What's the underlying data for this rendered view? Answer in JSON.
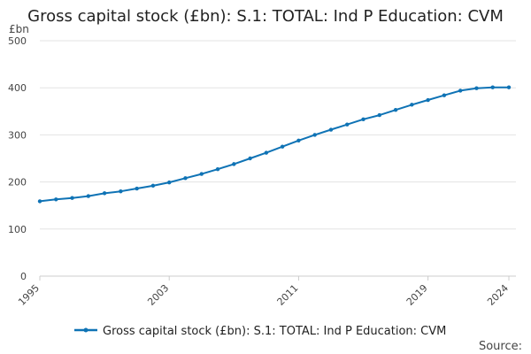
{
  "chart_data": {
    "type": "line",
    "title": "Gross capital stock (£bn): S.1: TOTAL: Ind P Education: CVM",
    "ylabel": "£bn",
    "xlabel": "",
    "x": [
      1995,
      1996,
      1997,
      1998,
      1999,
      2000,
      2001,
      2002,
      2003,
      2004,
      2005,
      2006,
      2007,
      2008,
      2009,
      2010,
      2011,
      2012,
      2013,
      2014,
      2015,
      2016,
      2017,
      2018,
      2019,
      2020,
      2021,
      2022,
      2023,
      2024
    ],
    "series": [
      {
        "name": "Gross capital stock (£bn): S.1: TOTAL: Ind P Education: CVM",
        "values": [
          159,
          163,
          166,
          170,
          176,
          180,
          186,
          192,
          199,
          208,
          217,
          227,
          238,
          250,
          262,
          275,
          288,
          300,
          311,
          322,
          333,
          342,
          353,
          364,
          374,
          384,
          394,
          399,
          401,
          401
        ]
      }
    ],
    "xticks": [
      "1995",
      "2003",
      "2011",
      "2019",
      "2024"
    ],
    "yticks": [
      "0",
      "100",
      "200",
      "300",
      "400",
      "500"
    ],
    "ylim": [
      0,
      500
    ],
    "grid": true,
    "legend_position": "bottom",
    "color": "#0f73b5"
  },
  "source_label": "Source:"
}
